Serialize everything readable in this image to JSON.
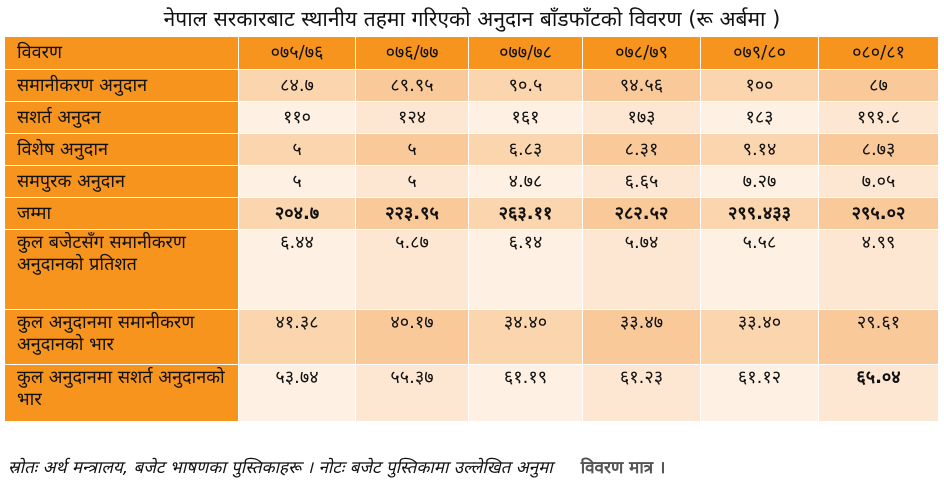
{
  "title": "नेपाल सरकारबाट स्थानीय तहमा गरिएको अनुदान बाँडफाँटको विवरण (रू अर्बमा )",
  "table": {
    "header": [
      "विवरण",
      "०७५/७६",
      "०७६/७७",
      "०७७/७८",
      "०७८/७९",
      "०७९/८०",
      "०८०/८१"
    ],
    "rows": [
      {
        "label": "समानीकरण अनुदान",
        "values": [
          "८४.७",
          "८९.९५",
          "९०.५",
          "९४.५६",
          "१००",
          "८७"
        ]
      },
      {
        "label": "सशर्त अनुदन",
        "values": [
          "११०",
          "१२४",
          "१६१",
          "१७३",
          "१८३",
          "१९१.८"
        ]
      },
      {
        "label": "विशेष अनुदान",
        "values": [
          "५",
          "५",
          "६.८३",
          "८.३१",
          "९.१४",
          "८.७३"
        ]
      },
      {
        "label": "समपुरक अनुदान",
        "values": [
          "५",
          "५",
          "४.७८",
          "६.६५",
          "७.२७",
          "७.०५"
        ]
      },
      {
        "label": "जम्मा",
        "values": [
          "२०४.७",
          "२२३.९५",
          "२६३.११",
          "२८२.५२",
          "२९९.४३३",
          "२९५.०२"
        ]
      },
      {
        "label": "कुल बजेटसँग समानीकरण अनुदानको प्रतिशत",
        "values": [
          "६.४४",
          "५.८७",
          "६.१४",
          "५.७४",
          "५.५८",
          "४.९९"
        ]
      },
      {
        "label": "कुल अनुदानमा समानीकरण अनुदानको भार",
        "values": [
          "४१.३८",
          "४०.१७",
          "३४.४०",
          "३३.४७",
          "३३.४०",
          "२९.६१"
        ]
      },
      {
        "label": "कुल अनुदानमा सशर्त अनुदानको भार",
        "values": [
          "५३.७४",
          "५५.३७",
          "६१.१९",
          "६१.२३",
          "६१.१२",
          "६५.०४"
        ]
      }
    ]
  },
  "note": {
    "text": "स्रोतः अर्थ मन्त्रालय, बजेट भाषणका पुस्तिकाहरू । नोटः बजेट पुस्तिकामा उल्लेखित अनुमा",
    "tail": "विवरण मात्र ।"
  },
  "colors": {
    "header_orange": "#f7941d",
    "band_dark": "#f9c99a",
    "band_light": "#fde7d2"
  }
}
